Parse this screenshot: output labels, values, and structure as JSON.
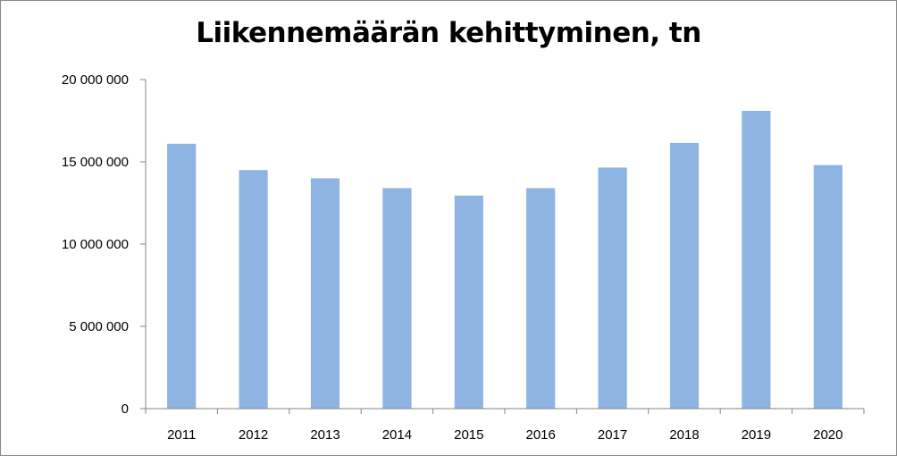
{
  "chart_data": {
    "type": "bar",
    "title": "Liikennemäärän kehittyminen, tn",
    "xlabel": "",
    "ylabel": "",
    "categories": [
      "2011",
      "2012",
      "2013",
      "2014",
      "2015",
      "2016",
      "2017",
      "2018",
      "2019",
      "2020"
    ],
    "values": [
      16100000,
      14500000,
      14000000,
      13400000,
      12950000,
      13400000,
      14650000,
      16150000,
      18100000,
      14800000
    ],
    "ylim": [
      0,
      20000000
    ],
    "yticks": [
      0,
      5000000,
      10000000,
      15000000,
      20000000
    ],
    "ytick_labels": [
      "0",
      "5 000 000",
      "10 000 000",
      "15 000 000",
      "20 000 000"
    ],
    "grid": false,
    "legend": "none",
    "bar_color": "#8eb4e3",
    "axis_color": "#868686"
  }
}
